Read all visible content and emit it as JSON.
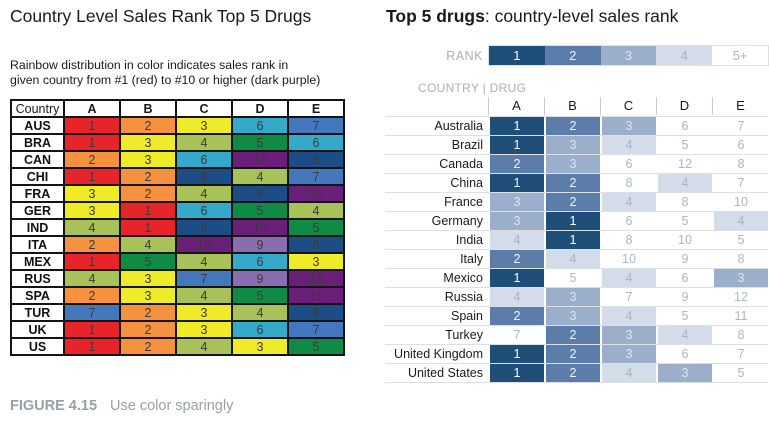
{
  "left_panel": {
    "title": "Country Level Sales Rank Top 5 Drugs",
    "subtitle_line1": "Rainbow distribution in color indicates sales rank in",
    "subtitle_line2": "given country from #1 (red) to #10 or higher (dark purple)",
    "table": {
      "headers": [
        "Country",
        "A",
        "B",
        "C",
        "D",
        "E"
      ],
      "rows": [
        {
          "label": "AUS",
          "ranks": [
            1,
            2,
            3,
            6,
            7
          ]
        },
        {
          "label": "BRA",
          "ranks": [
            1,
            3,
            4,
            5,
            6
          ]
        },
        {
          "label": "CAN",
          "ranks": [
            2,
            3,
            6,
            12,
            8
          ]
        },
        {
          "label": "CHI",
          "ranks": [
            1,
            2,
            8,
            4,
            7
          ]
        },
        {
          "label": "FRA",
          "ranks": [
            3,
            2,
            4,
            8,
            10
          ]
        },
        {
          "label": "GER",
          "ranks": [
            3,
            1,
            6,
            5,
            4
          ]
        },
        {
          "label": "IND",
          "ranks": [
            4,
            1,
            8,
            10,
            5
          ]
        },
        {
          "label": "ITA",
          "ranks": [
            2,
            4,
            10,
            9,
            8
          ]
        },
        {
          "label": "MEX",
          "ranks": [
            1,
            5,
            4,
            6,
            3
          ]
        },
        {
          "label": "RUS",
          "ranks": [
            4,
            3,
            7,
            9,
            12
          ]
        },
        {
          "label": "SPA",
          "ranks": [
            2,
            3,
            4,
            5,
            11
          ]
        },
        {
          "label": "TUR",
          "ranks": [
            7,
            2,
            3,
            4,
            8
          ]
        },
        {
          "label": "UK",
          "ranks": [
            1,
            2,
            3,
            6,
            7
          ]
        },
        {
          "label": "US",
          "ranks": [
            1,
            2,
            4,
            3,
            5
          ]
        }
      ]
    },
    "rank_colors": {
      "1": "#E8242B",
      "2": "#F6923F",
      "3": "#F0EB28",
      "4": "#A9C159",
      "5": "#0F8B45",
      "6": "#35A9C9",
      "7": "#4478BE",
      "8": "#1C4D87",
      "9": "#8A6DB0",
      "10plus": "#6A2078"
    },
    "cell_text_color": "#3A3A3A"
  },
  "right_panel": {
    "title_bold": "Top 5 drugs",
    "title_rest": ": country-level sales rank",
    "legend_label": "RANK",
    "legend_items": [
      "1",
      "2",
      "3",
      "4",
      "5+"
    ],
    "corner_label": "COUNTRY | DRUG",
    "columns": [
      "A",
      "B",
      "C",
      "D",
      "E"
    ],
    "rows": [
      {
        "label": "Australia",
        "ranks": [
          1,
          2,
          3,
          6,
          7
        ]
      },
      {
        "label": "Brazil",
        "ranks": [
          1,
          3,
          4,
          5,
          6
        ]
      },
      {
        "label": "Canada",
        "ranks": [
          2,
          3,
          6,
          12,
          8
        ]
      },
      {
        "label": "China",
        "ranks": [
          1,
          2,
          8,
          4,
          7
        ]
      },
      {
        "label": "France",
        "ranks": [
          3,
          2,
          4,
          8,
          10
        ]
      },
      {
        "label": "Germany",
        "ranks": [
          3,
          1,
          6,
          5,
          4
        ]
      },
      {
        "label": "India",
        "ranks": [
          4,
          1,
          8,
          10,
          5
        ]
      },
      {
        "label": "Italy",
        "ranks": [
          2,
          4,
          10,
          9,
          8
        ]
      },
      {
        "label": "Mexico",
        "ranks": [
          1,
          5,
          4,
          6,
          3
        ]
      },
      {
        "label": "Russia",
        "ranks": [
          4,
          3,
          7,
          9,
          12
        ]
      },
      {
        "label": "Spain",
        "ranks": [
          2,
          3,
          4,
          5,
          11
        ]
      },
      {
        "label": "Turkey",
        "ranks": [
          7,
          2,
          3,
          4,
          8
        ]
      },
      {
        "label": "United Kingdom",
        "ranks": [
          1,
          2,
          3,
          6,
          7
        ]
      },
      {
        "label": "United States",
        "ranks": [
          1,
          2,
          4,
          3,
          5
        ]
      }
    ],
    "rank_styles": [
      {
        "rank": "1",
        "bg": "#1F4E79",
        "text": "#FFFFFF"
      },
      {
        "rank": "2",
        "bg": "#5C7DAA",
        "text": "#EFF3F8"
      },
      {
        "rank": "3",
        "bg": "#9BAECA",
        "text": "#DEE4EE"
      },
      {
        "rank": "4",
        "bg": "#D4DCE9",
        "text": "#A9B3C3"
      },
      {
        "rank": "5+",
        "bg": "#FFFFFF",
        "text": "#AEB5C0"
      }
    ]
  },
  "caption": {
    "label": "FIGURE 4.15",
    "text": "Use color sparingly"
  },
  "chart_data": [
    {
      "type": "heatmap",
      "title": "Country Level Sales Rank Top 5 Drugs",
      "subtitle": "Rainbow distribution in color indicates sales rank in given country from #1 (red) to #10 or higher (dark purple)",
      "xlabel": "Drug",
      "ylabel": "Country",
      "columns": [
        "A",
        "B",
        "C",
        "D",
        "E"
      ],
      "rows": [
        "AUS",
        "BRA",
        "CAN",
        "CHI",
        "FRA",
        "GER",
        "IND",
        "ITA",
        "MEX",
        "RUS",
        "SPA",
        "TUR",
        "UK",
        "US"
      ],
      "values": [
        [
          1,
          2,
          3,
          6,
          7
        ],
        [
          1,
          3,
          4,
          5,
          6
        ],
        [
          2,
          3,
          6,
          12,
          8
        ],
        [
          1,
          2,
          8,
          4,
          7
        ],
        [
          3,
          2,
          4,
          8,
          10
        ],
        [
          3,
          1,
          6,
          5,
          4
        ],
        [
          4,
          1,
          8,
          10,
          5
        ],
        [
          2,
          4,
          10,
          9,
          8
        ],
        [
          1,
          5,
          4,
          6,
          3
        ],
        [
          4,
          3,
          7,
          9,
          12
        ],
        [
          2,
          3,
          4,
          5,
          11
        ],
        [
          7,
          2,
          3,
          4,
          8
        ],
        [
          1,
          2,
          3,
          6,
          7
        ],
        [
          1,
          2,
          4,
          3,
          5
        ]
      ],
      "color_encoding": "rainbow: 1=red, 2=orange, 3=yellow, 4=yellow-green, 5=green, 6=cyan, 7=blue, 8=dark blue, 9=light purple, 10+=dark purple"
    },
    {
      "type": "heatmap",
      "title": "Top 5 drugs: country-level sales rank",
      "legend": {
        "label": "RANK",
        "entries": [
          "1",
          "2",
          "3",
          "4",
          "5+"
        ],
        "position": "top"
      },
      "xlabel": "Drug",
      "ylabel": "Country",
      "columns": [
        "A",
        "B",
        "C",
        "D",
        "E"
      ],
      "rows": [
        "Australia",
        "Brazil",
        "Canada",
        "China",
        "France",
        "Germany",
        "India",
        "Italy",
        "Mexico",
        "Russia",
        "Spain",
        "Turkey",
        "United Kingdom",
        "United States"
      ],
      "values": [
        [
          1,
          2,
          3,
          6,
          7
        ],
        [
          1,
          3,
          4,
          5,
          6
        ],
        [
          2,
          3,
          6,
          12,
          8
        ],
        [
          1,
          2,
          8,
          4,
          7
        ],
        [
          3,
          2,
          4,
          8,
          10
        ],
        [
          3,
          1,
          6,
          5,
          4
        ],
        [
          4,
          1,
          8,
          10,
          5
        ],
        [
          2,
          4,
          10,
          9,
          8
        ],
        [
          1,
          5,
          4,
          6,
          3
        ],
        [
          4,
          3,
          7,
          9,
          12
        ],
        [
          2,
          3,
          4,
          5,
          11
        ],
        [
          7,
          2,
          3,
          4,
          8
        ],
        [
          1,
          2,
          3,
          6,
          7
        ],
        [
          1,
          2,
          4,
          3,
          5
        ]
      ],
      "color_encoding": "sequential blues: 1=darkest navy, 2=medium blue, 3=light blue, 4=pale blue, 5+=white"
    }
  ]
}
